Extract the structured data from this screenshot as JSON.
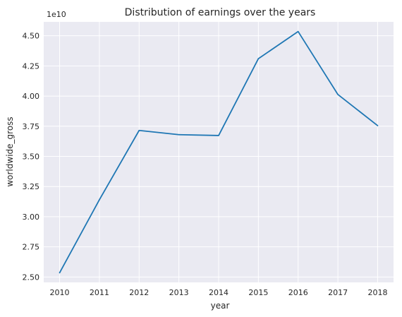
{
  "chart_data": {
    "type": "line",
    "title": "Distribution of earnings over the years",
    "xlabel": "year",
    "ylabel": "worldwide_gross",
    "y_offset_label": "1e10",
    "x": [
      2010,
      2011,
      2012,
      2013,
      2014,
      2015,
      2016,
      2017,
      2018
    ],
    "x_tick_labels": [
      "2010",
      "2011",
      "2012",
      "2013",
      "2014",
      "2015",
      "2016",
      "2017",
      "2018"
    ],
    "series": [
      {
        "values": [
          25350000000.0,
          31400000000.0,
          37150000000.0,
          36800000000.0,
          36730000000.0,
          43100000000.0,
          45350000000.0,
          40130000000.0,
          37550000000.0
        ]
      }
    ],
    "y_ticks": [
      2.5,
      2.75,
      3.0,
      3.25,
      3.5,
      3.75,
      4.0,
      4.25,
      4.5
    ],
    "y_tick_labels": [
      "2.50",
      "2.75",
      "3.00",
      "3.25",
      "3.50",
      "3.75",
      "4.00",
      "4.25",
      "4.50"
    ],
    "ylim": [
      24550000000.0,
      46150000000.0
    ],
    "xlim": [
      2009.6,
      2018.4
    ],
    "grid": true,
    "style": {
      "background": "#eaeaf2",
      "grid_color": "#ffffff",
      "line_color": "#1f77b4"
    }
  }
}
